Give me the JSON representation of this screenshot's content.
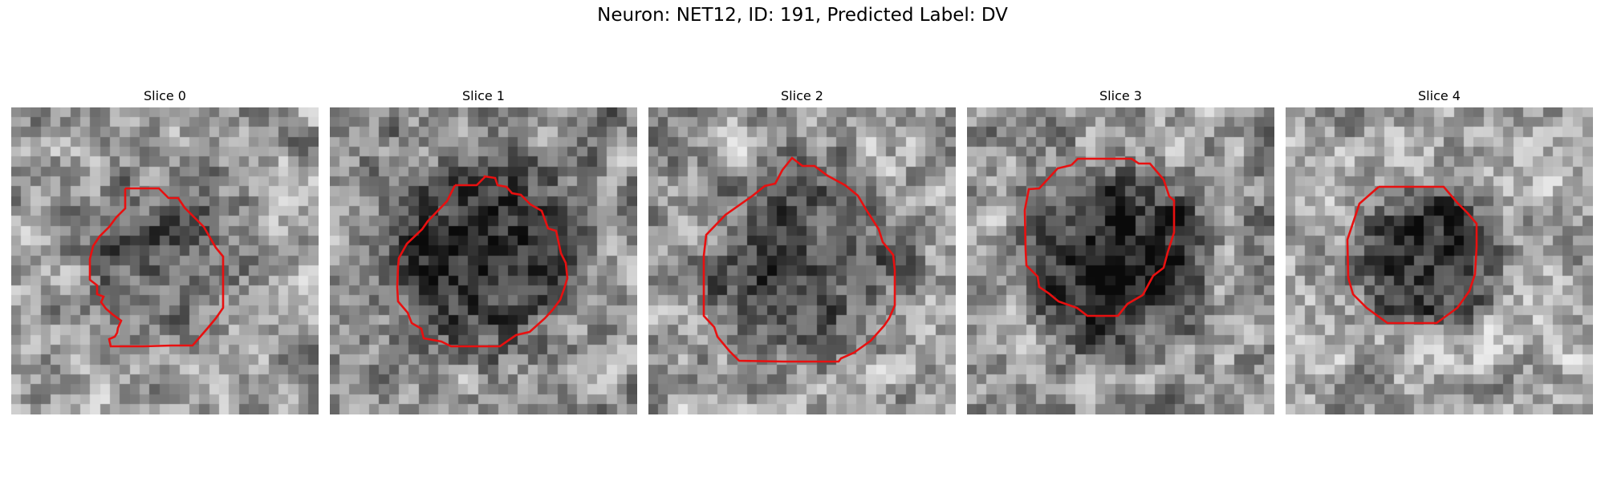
{
  "figure": {
    "title": "Neuron: NET12, ID: 191, Predicted Label: DV"
  },
  "colors": {
    "contour": "#e81010",
    "background": "#ffffff"
  },
  "panels": [
    {
      "title": "Slice 0"
    },
    {
      "title": "Slice 1"
    },
    {
      "title": "Slice 2"
    },
    {
      "title": "Slice 3"
    },
    {
      "title": "Slice 4"
    }
  ]
}
